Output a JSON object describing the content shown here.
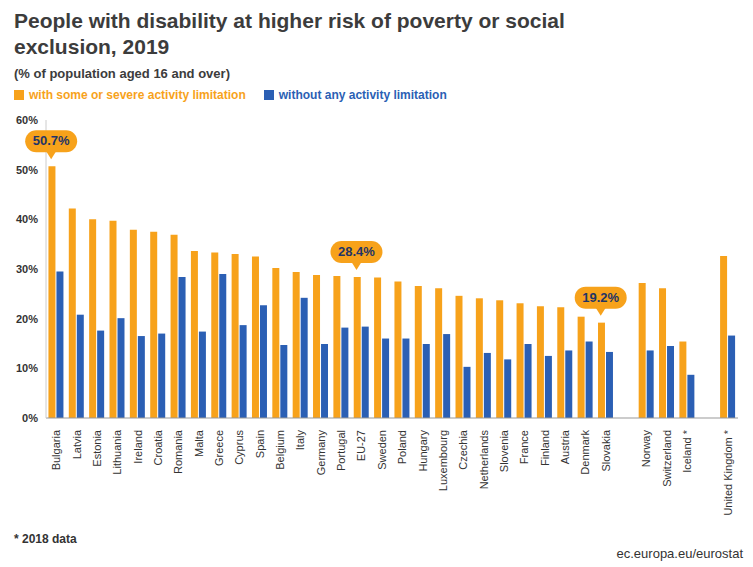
{
  "chart_data": {
    "type": "bar",
    "title": "People with disability at higher risk of poverty or social exclusion, 2019",
    "subtitle": "(% of population aged 16 and over)",
    "categories": [
      "Bulgaria",
      "Latvia",
      "Estonia",
      "Lithuania",
      "Ireland",
      "Croatia",
      "Romania",
      "Malta",
      "Greece",
      "Cyprus",
      "Spain",
      "Belgium",
      "Italy",
      "Germany",
      "Portugal",
      "EU-27",
      "Sweden",
      "Poland",
      "Hungary",
      "Luxembourg",
      "Czechia",
      "Netherlands",
      "Slovenia",
      "France",
      "Finland",
      "Austria",
      "Denmark",
      "Slovakia",
      null,
      "Norway",
      "Switzerland",
      "Iceland *",
      null,
      "United Kingdom *"
    ],
    "series": [
      {
        "name": "with some or severe activity limitation",
        "color": "#f7a21b",
        "values": [
          50.7,
          42.2,
          40.0,
          39.7,
          37.9,
          37.5,
          36.9,
          33.6,
          33.3,
          33.0,
          32.5,
          30.2,
          29.4,
          28.8,
          28.6,
          28.4,
          28.3,
          27.5,
          26.6,
          26.1,
          24.6,
          24.1,
          23.7,
          23.1,
          22.5,
          22.3,
          20.4,
          19.2,
          null,
          27.2,
          26.1,
          15.4,
          null,
          32.6
        ]
      },
      {
        "name": "without any activity limitation",
        "color": "#2b5fb4",
        "values": [
          29.5,
          20.8,
          17.6,
          20.1,
          16.5,
          17.0,
          28.4,
          17.4,
          29.0,
          18.7,
          22.7,
          14.7,
          24.2,
          14.9,
          18.2,
          18.4,
          16.0,
          16.0,
          14.9,
          16.9,
          10.3,
          13.1,
          11.8,
          14.9,
          12.5,
          13.6,
          15.4,
          13.3,
          null,
          13.6,
          14.5,
          8.7,
          null,
          16.6
        ]
      }
    ],
    "ylim": [
      0,
      60
    ],
    "yticks": [
      {
        "value": 0,
        "label": "0%"
      },
      {
        "value": 10,
        "label": "10%"
      },
      {
        "value": 20,
        "label": "20%"
      },
      {
        "value": 30,
        "label": "30%"
      },
      {
        "value": 40,
        "label": "40%"
      },
      {
        "value": 50,
        "label": "50%"
      },
      {
        "value": 60,
        "label": "60%"
      }
    ],
    "annotations": [
      {
        "category": "Bulgaria",
        "value": 50.7,
        "label": "50.7%"
      },
      {
        "category": "EU-27",
        "value": 28.4,
        "label": "28.4%"
      },
      {
        "category": "Slovakia",
        "value": 19.2,
        "label": "19.2%"
      }
    ],
    "footnote": "* 2018 data",
    "source": "ec.europa.eu/eurostat",
    "grid": false,
    "legend": "top-left"
  }
}
